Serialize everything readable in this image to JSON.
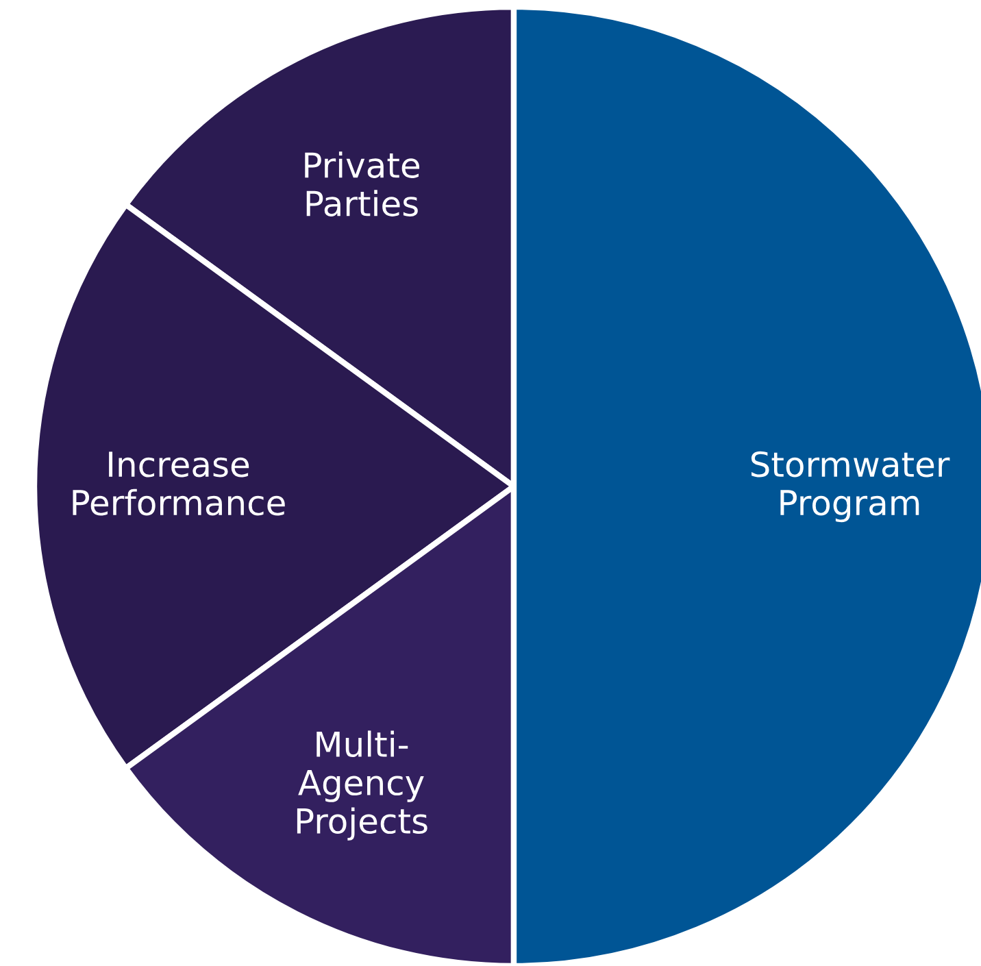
{
  "chart_data": {
    "type": "pie",
    "categories": [
      "Private Parties",
      "Increase Performance",
      "Multi-Agency Projects",
      "Stormwater Program"
    ],
    "values": [
      15,
      20,
      15,
      50
    ],
    "colors": [
      "#2b1b52",
      "#2a1a50",
      "#33205f",
      "#005595"
    ]
  }
}
